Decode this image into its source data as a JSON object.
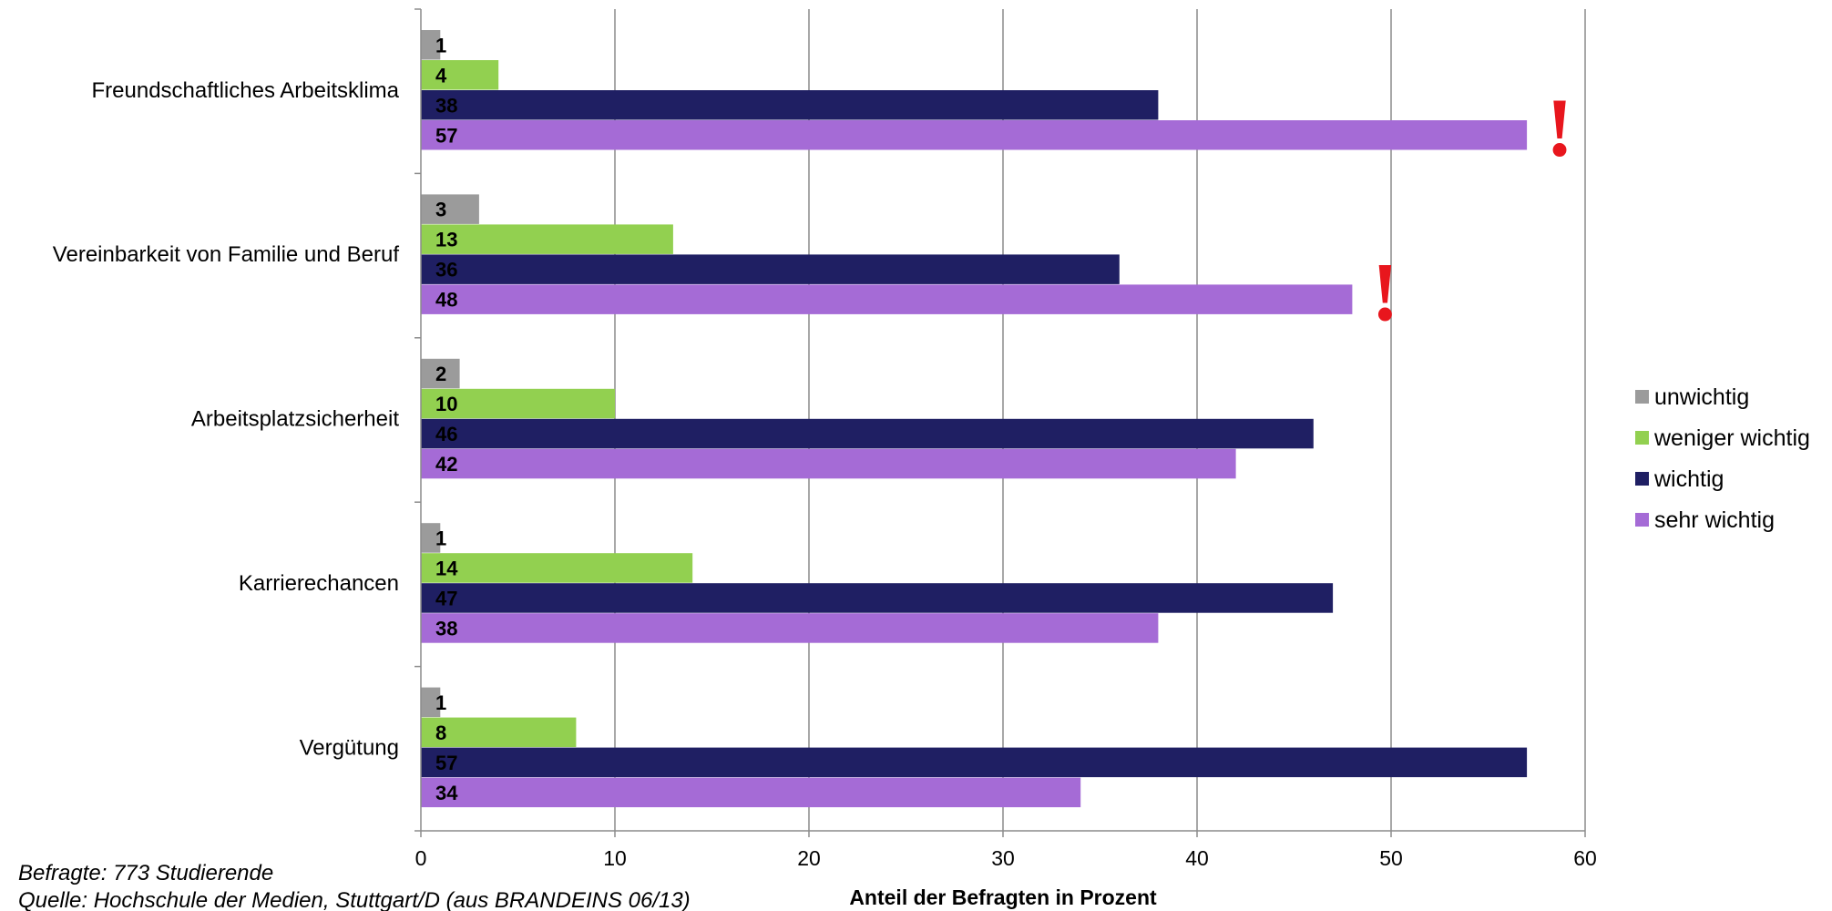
{
  "chart_data": {
    "type": "bar",
    "orientation": "horizontal",
    "categories": [
      "Freundschaftliches Arbeitsklima",
      "Vereinbarkeit von Familie und Beruf",
      "Arbeitsplatzsicherheit",
      "Karrierechancen",
      "Vergütung"
    ],
    "series": [
      {
        "name": "unwichtig",
        "color": "#9b9b9b",
        "values": [
          1,
          3,
          2,
          1,
          1
        ]
      },
      {
        "name": "weniger wichtig",
        "color": "#92d050",
        "values": [
          4,
          13,
          10,
          14,
          8
        ]
      },
      {
        "name": "wichtig",
        "color": "#1f1f63",
        "values": [
          38,
          36,
          46,
          47,
          57
        ]
      },
      {
        "name": "sehr wichtig",
        "color": "#a56bd6",
        "values": [
          57,
          48,
          42,
          38,
          34
        ]
      }
    ],
    "xlim": [
      0,
      60
    ],
    "xticks": [
      0,
      10,
      20,
      30,
      40,
      50,
      60
    ],
    "xlabel": "Anteil der Befragten in Prozent",
    "grid": "vertical",
    "legend_position": "right",
    "highlights": [
      {
        "category_index": 0,
        "text": "!"
      },
      {
        "category_index": 1,
        "text": "!"
      }
    ]
  },
  "notes": {
    "sample": "Befragte: 773 Studierende",
    "source": "Quelle: Hochschule der Medien, Stuttgart/D (aus BRANDEINS 06/13)"
  }
}
